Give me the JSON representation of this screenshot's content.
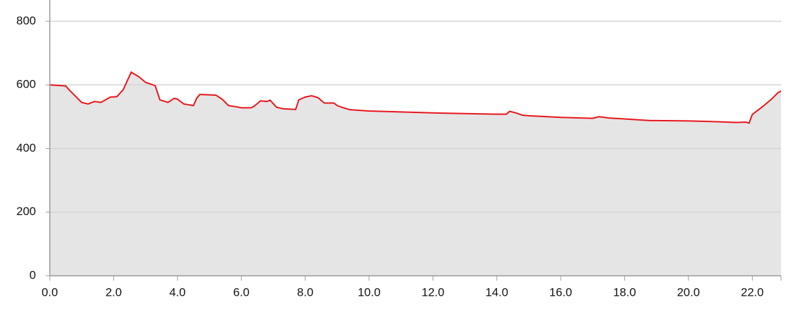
{
  "chart_data": {
    "type": "area",
    "x": [
      0.0,
      0.5,
      0.6,
      0.8,
      1.0,
      1.2,
      1.4,
      1.6,
      1.9,
      2.1,
      2.3,
      2.55,
      2.8,
      3.0,
      3.3,
      3.45,
      3.7,
      3.9,
      4.0,
      4.2,
      4.5,
      4.6,
      4.7,
      5.2,
      5.4,
      5.6,
      5.8,
      6.0,
      6.3,
      6.4,
      6.6,
      6.8,
      6.9,
      7.1,
      7.3,
      7.7,
      7.8,
      8.0,
      8.2,
      8.4,
      8.6,
      8.9,
      9.0,
      9.2,
      9.4,
      10.0,
      11.0,
      12.0,
      13.0,
      14.0,
      14.3,
      14.4,
      14.6,
      14.8,
      15.0,
      16.0,
      17.0,
      17.2,
      17.5,
      18.0,
      18.8,
      19.0,
      20.0,
      21.0,
      21.5,
      21.8,
      21.9,
      22.0,
      22.3,
      22.6,
      22.8,
      22.9
    ],
    "values": [
      600,
      597,
      585,
      565,
      545,
      540,
      548,
      545,
      562,
      563,
      585,
      640,
      625,
      608,
      598,
      553,
      545,
      558,
      555,
      540,
      535,
      558,
      570,
      568,
      555,
      535,
      532,
      528,
      528,
      533,
      550,
      548,
      552,
      530,
      525,
      523,
      553,
      562,
      566,
      560,
      543,
      543,
      535,
      528,
      522,
      518,
      515,
      512,
      510,
      508,
      508,
      517,
      512,
      505,
      503,
      498,
      495,
      500,
      496,
      493,
      488,
      488,
      487,
      484,
      482,
      483,
      480,
      507,
      530,
      555,
      575,
      581
    ],
    "color": "#e8141a",
    "fill": "#e5e5e5",
    "xlim": [
      0,
      22.9
    ],
    "ylim": [
      0,
      867
    ],
    "xticks": [
      {
        "value": 0,
        "label": "0.0"
      },
      {
        "value": 2,
        "label": "2.0"
      },
      {
        "value": 4,
        "label": "4.0"
      },
      {
        "value": 6,
        "label": "6.0"
      },
      {
        "value": 8,
        "label": "8.0"
      },
      {
        "value": 10,
        "label": "10.0"
      },
      {
        "value": 12,
        "label": "12.0"
      },
      {
        "value": 14,
        "label": "14.0"
      },
      {
        "value": 16,
        "label": "16.0"
      },
      {
        "value": 18,
        "label": "18.0"
      },
      {
        "value": 20,
        "label": "20.0"
      },
      {
        "value": 22,
        "label": "22.0"
      }
    ],
    "yticks": [
      0,
      200,
      400,
      600,
      800
    ],
    "grid": true
  }
}
